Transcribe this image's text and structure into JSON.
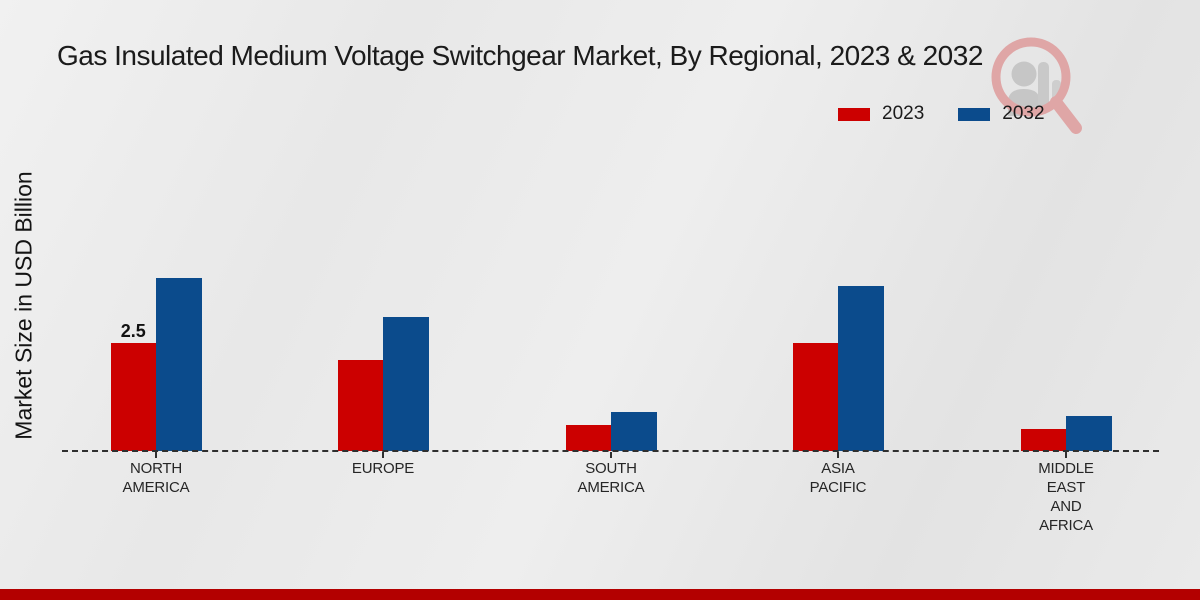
{
  "page": {
    "title": "Gas Insulated Medium Voltage Switchgear Market, By Regional, 2023 & 2032",
    "ylabel": "Market Size in USD Billion"
  },
  "legend": {
    "items": [
      {
        "label": "2023",
        "color": "#cc0000"
      },
      {
        "label": "2032",
        "color": "#0b4b8c"
      }
    ]
  },
  "chart_data": {
    "type": "bar",
    "title": "Gas Insulated Medium Voltage Switchgear Market, By Regional, 2023 & 2032",
    "xlabel": "",
    "ylabel": "Market Size in USD Billion",
    "categories": [
      "NORTH AMERICA",
      "EUROPE",
      "SOUTH AMERICA",
      "ASIA PACIFIC",
      "MIDDLE EAST AND AFRICA"
    ],
    "category_label_lines": [
      [
        "NORTH",
        "AMERICA"
      ],
      [
        "EUROPE"
      ],
      [
        "SOUTH",
        "AMERICA"
      ],
      [
        "ASIA",
        "PACIFIC"
      ],
      [
        "MIDDLE",
        "EAST",
        "AND",
        "AFRICA"
      ]
    ],
    "series": [
      {
        "name": "2023",
        "color": "#cc0000",
        "values": [
          2.5,
          2.1,
          0.6,
          2.5,
          0.5
        ]
      },
      {
        "name": "2032",
        "color": "#0b4b8c",
        "values": [
          4.0,
          3.1,
          0.9,
          3.8,
          0.8
        ]
      }
    ],
    "data_labels": [
      {
        "series_index": 0,
        "category_index": 0,
        "text": "2.5"
      }
    ],
    "ylim": [
      0,
      4.5
    ],
    "grid": false,
    "legend_position": "top-right",
    "baseline_style": "dashed",
    "y_axis_ticks_visible": false
  },
  "icons": {
    "watermark": "magnifier-person-logo"
  },
  "footer": {
    "strip_color": "#b30000"
  }
}
